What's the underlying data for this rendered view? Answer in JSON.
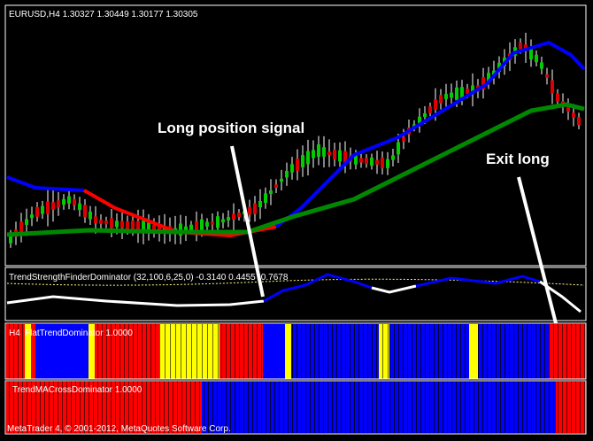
{
  "chart_header": "EURUSD,H4  1.30327 1.30449 1.30177 1.30305",
  "annotations": {
    "long_signal": "Long position signal",
    "exit_long": "Exit long"
  },
  "panels": {
    "strength": "TrendStrengthFinderDominator (32,100,6,25,0) -0.3140 0.4455 -0.7678",
    "flat_trend_timeframe": "H4",
    "flat_trend": "FlatTrendDominator 1.0000",
    "ma_cross": "TrendMACrossDominator 1.0000"
  },
  "footer": "MetaTrader 4, © 2001-2012, MetaQuotes Software Corp."
}
